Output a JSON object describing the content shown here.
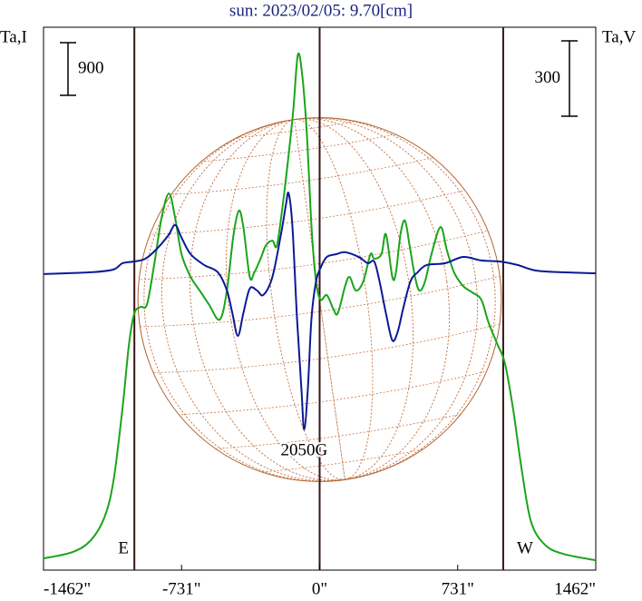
{
  "chart_data": {
    "type": "line",
    "title": "sun: 2023/02/05: 9.70[cm]",
    "y_label": "Ta,I",
    "y2_label": "Ta,V",
    "annotation": "2050G",
    "i_scale": 900,
    "v_scale": 300,
    "disk_radius": 962,
    "vlines": [
      {
        "x": -981,
        "label": "E"
      },
      {
        "x": 0
      },
      {
        "x": 972,
        "label": "W"
      }
    ],
    "xlim": [
      -1462,
      1462
    ],
    "xticks": [
      {
        "value": -1462,
        "label": "-1462\""
      },
      {
        "value": -731,
        "label": "-731\""
      },
      {
        "value": 0,
        "label": "0\""
      },
      {
        "value": 731,
        "label": "731\""
      },
      {
        "value": 1462,
        "label": "1462\""
      }
    ],
    "ylim": [
      -200,
      9080
    ],
    "y2lim": [
      -1185,
      975
    ],
    "series": [
      {
        "color": "#1aa51a",
        "x": [
          -1462,
          -1308,
          -1212,
          -1140,
          -1092,
          -1044,
          -1010,
          -981,
          -947,
          -914,
          -875,
          -837,
          -798,
          -765,
          -731,
          -683,
          -635,
          -587,
          -529,
          -491,
          -457,
          -428,
          -404,
          -370,
          -346,
          -313,
          -284,
          -250,
          -226,
          -192,
          -164,
          -139,
          -115,
          -91,
          -67,
          -43,
          -19,
          5,
          38,
          72,
          96,
          135,
          159,
          192,
          231,
          269,
          289,
          327,
          351,
          385,
          404,
          428,
          452,
          476,
          505,
          529,
          558,
          592,
          640,
          673,
          712,
          760,
          808,
          856,
          894,
          943,
          981,
          1024,
          1072,
          1120,
          1193,
          1289,
          1462
        ],
        "values": [
          0,
          109,
          310,
          698,
          1319,
          2561,
          3647,
          4190,
          4299,
          4346,
          5044,
          5820,
          6239,
          5820,
          5199,
          4811,
          4578,
          4346,
          4082,
          4578,
          5510,
          5944,
          5665,
          4811,
          4889,
          5122,
          5354,
          5432,
          5354,
          6130,
          6906,
          7682,
          8614,
          8226,
          7217,
          5665,
          4734,
          4423,
          4501,
          4268,
          4190,
          4656,
          4811,
          4578,
          4734,
          5199,
          5122,
          5199,
          5541,
          4811,
          4889,
          5541,
          5773,
          5354,
          4811,
          4578,
          4734,
          5199,
          5665,
          5277,
          4889,
          4656,
          4547,
          4423,
          4035,
          3647,
          3337,
          2561,
          1474,
          621,
          233,
          78,
          -31
        ]
      },
      {
        "color": "#0a1a96",
        "axis": "y2",
        "x": [
          -1462,
          -1212,
          -1092,
          -1044,
          -981,
          -923,
          -866,
          -803,
          -765,
          -731,
          -683,
          -611,
          -539,
          -491,
          -462,
          -433,
          -404,
          -370,
          -332,
          -298,
          -250,
          -202,
          -178,
          -164,
          -144,
          -120,
          -96,
          -82,
          -63,
          -43,
          -19,
          5,
          38,
          87,
          135,
          207,
          255,
          289,
          317,
          351,
          385,
          414,
          442,
          481,
          519,
          567,
          664,
          760,
          856,
          952,
          1048,
          1145,
          1289,
          1462
        ],
        "values": [
          -7,
          0,
          11,
          36,
          43,
          54,
          90,
          145,
          188,
          137,
          72,
          29,
          0,
          -72,
          -163,
          -253,
          -163,
          -65,
          -72,
          -90,
          -18,
          163,
          271,
          314,
          181,
          -181,
          -470,
          -625,
          -470,
          -181,
          -36,
          18,
          61,
          72,
          80,
          61,
          36,
          43,
          -36,
          -163,
          -271,
          -235,
          -145,
          -36,
          0,
          29,
          36,
          61,
          47,
          43,
          29,
          7,
          0,
          -4
        ]
      }
    ]
  }
}
